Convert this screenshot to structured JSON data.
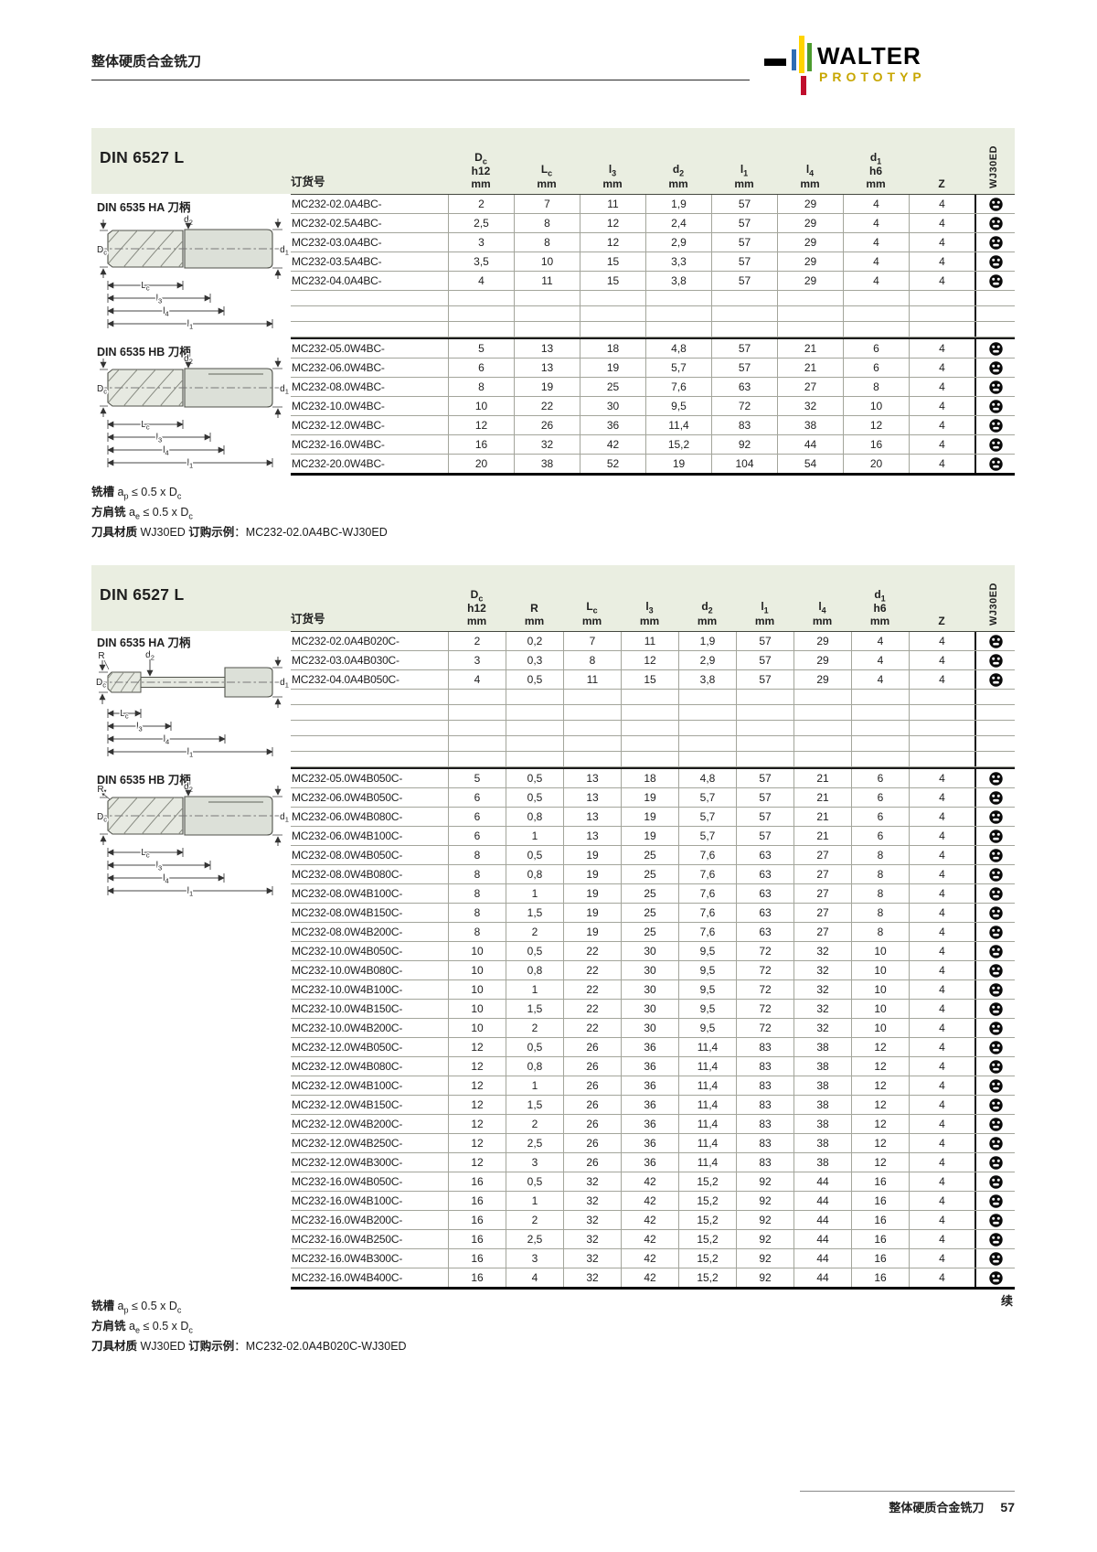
{
  "page": {
    "header_title": "整体硬质合金铣刀",
    "footer_title": "整体硬质合金铣刀",
    "page_number": "57",
    "continued_label": "续",
    "colors": {
      "band": "#eaeee1",
      "grid_line": "#a3a59b",
      "heavy_line": "#1a1a1a"
    }
  },
  "logo": {
    "brand": "WALTER",
    "sub_brand": "PROTOTYP",
    "bar_colors": {
      "dash": "#000000",
      "blue": "#2e6db4",
      "yellow": "#ffd400",
      "green": "#4c9c2e",
      "red": "#c00f2d",
      "gold": "#c7a600"
    }
  },
  "icons": {
    "stock_icon": "availability-socket-icon"
  },
  "diagram_labels": {
    "dc": [
      [
        "D",
        ""
      ],
      [
        "c",
        "sub"
      ]
    ],
    "d1": [
      [
        "d",
        ""
      ],
      [
        "1",
        "sub"
      ]
    ],
    "d2": [
      [
        "d",
        ""
      ],
      [
        "2",
        "sub"
      ]
    ],
    "lc": [
      [
        "L",
        ""
      ],
      [
        "c",
        "sub"
      ]
    ],
    "l3": [
      [
        "l",
        ""
      ],
      [
        "3",
        "sub"
      ]
    ],
    "l4": [
      [
        "l",
        ""
      ],
      [
        "4",
        "sub"
      ]
    ],
    "l1": [
      [
        "l",
        ""
      ],
      [
        "1",
        "sub"
      ]
    ],
    "r": [
      [
        "R",
        ""
      ]
    ]
  },
  "tables": [
    {
      "title": "DIN 6527 L",
      "order_label": "订货号",
      "material_label": "WJ30ED",
      "columns": [
        {
          "sym": [
            [
              "D",
              ""
            ],
            [
              "c",
              "sub"
            ]
          ],
          "fit": "h12",
          "unit": "mm"
        },
        {
          "sym": [
            [
              "L",
              ""
            ],
            [
              "c",
              "sub"
            ]
          ],
          "unit": "mm"
        },
        {
          "sym": [
            [
              "l",
              ""
            ],
            [
              "3",
              "sub"
            ]
          ],
          "unit": "mm"
        },
        {
          "sym": [
            [
              "d",
              ""
            ],
            [
              "2",
              "sub"
            ]
          ],
          "unit": "mm"
        },
        {
          "sym": [
            [
              "l",
              ""
            ],
            [
              "1",
              "sub"
            ]
          ],
          "unit": "mm"
        },
        {
          "sym": [
            [
              "l",
              ""
            ],
            [
              "4",
              "sub"
            ]
          ],
          "unit": "mm"
        },
        {
          "sym": [
            [
              "d",
              ""
            ],
            [
              "1",
              "sub"
            ]
          ],
          "fit": "h6",
          "unit": "mm"
        },
        {
          "sym": [
            [
              "Z",
              ""
            ]
          ]
        }
      ],
      "sections": [
        {
          "label": "DIN 6535 HA 刀柄",
          "diagram": "ha",
          "empty_rows_after": 3,
          "rows": [
            [
              "MC232-02.0A4BC-",
              "2",
              "7",
              "11",
              "1,9",
              "57",
              "29",
              "4",
              "4"
            ],
            [
              "MC232-02.5A4BC-",
              "2,5",
              "8",
              "12",
              "2,4",
              "57",
              "29",
              "4",
              "4"
            ],
            [
              "MC232-03.0A4BC-",
              "3",
              "8",
              "12",
              "2,9",
              "57",
              "29",
              "4",
              "4"
            ],
            [
              "MC232-03.5A4BC-",
              "3,5",
              "10",
              "15",
              "3,3",
              "57",
              "29",
              "4",
              "4"
            ],
            [
              "MC232-04.0A4BC-",
              "4",
              "11",
              "15",
              "3,8",
              "57",
              "29",
              "4",
              "4"
            ]
          ]
        },
        {
          "label": "DIN 6535 HB 刀柄",
          "diagram": "hb",
          "empty_rows_after": 0,
          "rows": [
            [
              "MC232-05.0W4BC-",
              "5",
              "13",
              "18",
              "4,8",
              "57",
              "21",
              "6",
              "4"
            ],
            [
              "MC232-06.0W4BC-",
              "6",
              "13",
              "19",
              "5,7",
              "57",
              "21",
              "6",
              "4"
            ],
            [
              "MC232-08.0W4BC-",
              "8",
              "19",
              "25",
              "7,6",
              "63",
              "27",
              "8",
              "4"
            ],
            [
              "MC232-10.0W4BC-",
              "10",
              "22",
              "30",
              "9,5",
              "72",
              "32",
              "10",
              "4"
            ],
            [
              "MC232-12.0W4BC-",
              "12",
              "26",
              "36",
              "11,4",
              "83",
              "38",
              "12",
              "4"
            ],
            [
              "MC232-16.0W4BC-",
              "16",
              "32",
              "42",
              "15,2",
              "92",
              "44",
              "16",
              "4"
            ],
            [
              "MC232-20.0W4BC-",
              "20",
              "38",
              "52",
              "19",
              "104",
              "54",
              "20",
              "4"
            ]
          ]
        }
      ],
      "notes": [
        [
          [
            "铣槽",
            "b"
          ],
          [
            " a",
            ""
          ],
          [
            "p",
            "sub"
          ],
          [
            " ≤ 0.5 x D",
            ""
          ],
          [
            "c",
            "sub"
          ]
        ],
        [
          [
            "方肩铣",
            "b"
          ],
          [
            " a",
            ""
          ],
          [
            "e",
            "sub"
          ],
          [
            " ≤ 0.5 x D",
            ""
          ],
          [
            "c",
            "sub"
          ]
        ],
        [
          [
            "刀具材质",
            "b"
          ],
          [
            " WJ30ED ",
            ""
          ],
          [
            "订购示例",
            "b"
          ],
          [
            "：MC232-02.0A4BC-WJ30ED",
            ""
          ]
        ]
      ]
    },
    {
      "title": "DIN 6527 L",
      "order_label": "订货号",
      "material_label": "WJ30ED",
      "columns": [
        {
          "sym": [
            [
              "D",
              ""
            ],
            [
              "c",
              "sub"
            ]
          ],
          "fit": "h12",
          "unit": "mm"
        },
        {
          "sym": [
            [
              "R",
              ""
            ]
          ],
          "unit": "mm"
        },
        {
          "sym": [
            [
              "L",
              ""
            ],
            [
              "c",
              "sub"
            ]
          ],
          "unit": "mm"
        },
        {
          "sym": [
            [
              "l",
              ""
            ],
            [
              "3",
              "sub"
            ]
          ],
          "unit": "mm"
        },
        {
          "sym": [
            [
              "d",
              ""
            ],
            [
              "2",
              "sub"
            ]
          ],
          "unit": "mm"
        },
        {
          "sym": [
            [
              "l",
              ""
            ],
            [
              "1",
              "sub"
            ]
          ],
          "unit": "mm"
        },
        {
          "sym": [
            [
              "l",
              ""
            ],
            [
              "4",
              "sub"
            ]
          ],
          "unit": "mm"
        },
        {
          "sym": [
            [
              "d",
              ""
            ],
            [
              "1",
              "sub"
            ]
          ],
          "fit": "h6",
          "unit": "mm"
        },
        {
          "sym": [
            [
              "Z",
              ""
            ]
          ]
        }
      ],
      "sections": [
        {
          "label": "DIN 6535 HA 刀柄",
          "diagram": "ha-neck-r",
          "empty_rows_after": 5,
          "rows": [
            [
              "MC232-02.0A4B020C-",
              "2",
              "0,2",
              "7",
              "11",
              "1,9",
              "57",
              "29",
              "4",
              "4"
            ],
            [
              "MC232-03.0A4B030C-",
              "3",
              "0,3",
              "8",
              "12",
              "2,9",
              "57",
              "29",
              "4",
              "4"
            ],
            [
              "MC232-04.0A4B050C-",
              "4",
              "0,5",
              "11",
              "15",
              "3,8",
              "57",
              "29",
              "4",
              "4"
            ]
          ]
        },
        {
          "label": "DIN 6535 HB 刀柄",
          "diagram": "hb-r",
          "empty_rows_after": 0,
          "rows": [
            [
              "MC232-05.0W4B050C-",
              "5",
              "0,5",
              "13",
              "18",
              "4,8",
              "57",
              "21",
              "6",
              "4"
            ],
            [
              "MC232-06.0W4B050C-",
              "6",
              "0,5",
              "13",
              "19",
              "5,7",
              "57",
              "21",
              "6",
              "4"
            ],
            [
              "MC232-06.0W4B080C-",
              "6",
              "0,8",
              "13",
              "19",
              "5,7",
              "57",
              "21",
              "6",
              "4"
            ],
            [
              "MC232-06.0W4B100C-",
              "6",
              "1",
              "13",
              "19",
              "5,7",
              "57",
              "21",
              "6",
              "4"
            ],
            [
              "MC232-08.0W4B050C-",
              "8",
              "0,5",
              "19",
              "25",
              "7,6",
              "63",
              "27",
              "8",
              "4"
            ],
            [
              "MC232-08.0W4B080C-",
              "8",
              "0,8",
              "19",
              "25",
              "7,6",
              "63",
              "27",
              "8",
              "4"
            ],
            [
              "MC232-08.0W4B100C-",
              "8",
              "1",
              "19",
              "25",
              "7,6",
              "63",
              "27",
              "8",
              "4"
            ],
            [
              "MC232-08.0W4B150C-",
              "8",
              "1,5",
              "19",
              "25",
              "7,6",
              "63",
              "27",
              "8",
              "4"
            ],
            [
              "MC232-08.0W4B200C-",
              "8",
              "2",
              "19",
              "25",
              "7,6",
              "63",
              "27",
              "8",
              "4"
            ],
            [
              "MC232-10.0W4B050C-",
              "10",
              "0,5",
              "22",
              "30",
              "9,5",
              "72",
              "32",
              "10",
              "4"
            ],
            [
              "MC232-10.0W4B080C-",
              "10",
              "0,8",
              "22",
              "30",
              "9,5",
              "72",
              "32",
              "10",
              "4"
            ],
            [
              "MC232-10.0W4B100C-",
              "10",
              "1",
              "22",
              "30",
              "9,5",
              "72",
              "32",
              "10",
              "4"
            ],
            [
              "MC232-10.0W4B150C-",
              "10",
              "1,5",
              "22",
              "30",
              "9,5",
              "72",
              "32",
              "10",
              "4"
            ],
            [
              "MC232-10.0W4B200C-",
              "10",
              "2",
              "22",
              "30",
              "9,5",
              "72",
              "32",
              "10",
              "4"
            ],
            [
              "MC232-12.0W4B050C-",
              "12",
              "0,5",
              "26",
              "36",
              "11,4",
              "83",
              "38",
              "12",
              "4"
            ],
            [
              "MC232-12.0W4B080C-",
              "12",
              "0,8",
              "26",
              "36",
              "11,4",
              "83",
              "38",
              "12",
              "4"
            ],
            [
              "MC232-12.0W4B100C-",
              "12",
              "1",
              "26",
              "36",
              "11,4",
              "83",
              "38",
              "12",
              "4"
            ],
            [
              "MC232-12.0W4B150C-",
              "12",
              "1,5",
              "26",
              "36",
              "11,4",
              "83",
              "38",
              "12",
              "4"
            ],
            [
              "MC232-12.0W4B200C-",
              "12",
              "2",
              "26",
              "36",
              "11,4",
              "83",
              "38",
              "12",
              "4"
            ],
            [
              "MC232-12.0W4B250C-",
              "12",
              "2,5",
              "26",
              "36",
              "11,4",
              "83",
              "38",
              "12",
              "4"
            ],
            [
              "MC232-12.0W4B300C-",
              "12",
              "3",
              "26",
              "36",
              "11,4",
              "83",
              "38",
              "12",
              "4"
            ],
            [
              "MC232-16.0W4B050C-",
              "16",
              "0,5",
              "32",
              "42",
              "15,2",
              "92",
              "44",
              "16",
              "4"
            ],
            [
              "MC232-16.0W4B100C-",
              "16",
              "1",
              "32",
              "42",
              "15,2",
              "92",
              "44",
              "16",
              "4"
            ],
            [
              "MC232-16.0W4B200C-",
              "16",
              "2",
              "32",
              "42",
              "15,2",
              "92",
              "44",
              "16",
              "4"
            ],
            [
              "MC232-16.0W4B250C-",
              "16",
              "2,5",
              "32",
              "42",
              "15,2",
              "92",
              "44",
              "16",
              "4"
            ],
            [
              "MC232-16.0W4B300C-",
              "16",
              "3",
              "32",
              "42",
              "15,2",
              "92",
              "44",
              "16",
              "4"
            ],
            [
              "MC232-16.0W4B400C-",
              "16",
              "4",
              "32",
              "42",
              "15,2",
              "92",
              "44",
              "16",
              "4"
            ]
          ]
        }
      ],
      "notes": [
        [
          [
            "铣槽",
            "b"
          ],
          [
            " a",
            ""
          ],
          [
            "p",
            "sub"
          ],
          [
            " ≤ 0.5 x D",
            ""
          ],
          [
            "c",
            "sub"
          ]
        ],
        [
          [
            "方肩铣",
            "b"
          ],
          [
            " a",
            ""
          ],
          [
            "e",
            "sub"
          ],
          [
            " ≤ 0.5 x D",
            ""
          ],
          [
            "c",
            "sub"
          ]
        ],
        [
          [
            "刀具材质",
            "b"
          ],
          [
            " WJ30ED ",
            ""
          ],
          [
            "订购示例",
            "b"
          ],
          [
            "：MC232-02.0A4B020C-WJ30ED",
            ""
          ]
        ]
      ]
    }
  ]
}
